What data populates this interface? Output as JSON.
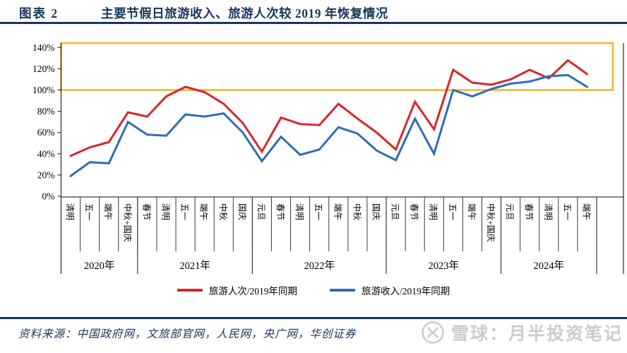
{
  "header": {
    "figure_label": "图表 2",
    "title": "主要节假日旅游收入、旅游人次较 2019 年恢复情况"
  },
  "chart_data": {
    "type": "line",
    "title": "主要节假日旅游收入、旅游人次较 2019 年恢复情况",
    "ylabel": "",
    "xlabel": "",
    "ylim": [
      0,
      145
    ],
    "yticks": [
      0,
      20,
      40,
      60,
      80,
      100,
      120,
      140
    ],
    "ytick_suffix": "%",
    "grid": false,
    "legend_position": "bottom",
    "highlight_box": {
      "from_percent": 100,
      "to_percent": 144,
      "color": "#F2B62C"
    },
    "categories": [
      {
        "year": "2020年",
        "holidays": [
          "清明",
          "五一",
          "端午",
          "中秋+国庆"
        ]
      },
      {
        "year": "2021年",
        "holidays": [
          "春节",
          "清明",
          "五一",
          "端午",
          "中秋",
          "国庆"
        ]
      },
      {
        "year": "2022年",
        "holidays": [
          "元旦",
          "春节",
          "清明",
          "五一",
          "端午",
          "中秋",
          "国庆"
        ]
      },
      {
        "year": "2023年",
        "holidays": [
          "元旦",
          "春节",
          "清明",
          "五一",
          "端午",
          "中秋+国庆"
        ]
      },
      {
        "year": "2024年",
        "holidays": [
          "元旦",
          "春节",
          "清明",
          "五一",
          "端午"
        ]
      }
    ],
    "series": [
      {
        "name": "旅游人次/2019年同期",
        "color": "#D7262C",
        "values": [
          38,
          46,
          51,
          79,
          75,
          94,
          103,
          98,
          87,
          69,
          42,
          74,
          68,
          67,
          87,
          73,
          60,
          44,
          89,
          63,
          119,
          107,
          105,
          110,
          119,
          111,
          128,
          115
        ]
      },
      {
        "name": "旅游收入/2019年同期",
        "color": "#2E6DB5",
        "values": [
          19,
          32,
          31,
          70,
          58,
          57,
          77,
          75,
          78,
          60,
          33,
          56,
          39,
          44,
          65,
          59,
          43,
          34,
          73,
          40,
          100,
          94,
          101,
          106,
          108,
          113,
          114,
          103
        ]
      }
    ]
  },
  "footer": {
    "source": "资料来源：中国政府网，文旅部官网，人民网，央广网，华创证券",
    "watermark": "雪球：月半投资笔记"
  },
  "colors": {
    "accent_navy": "#16365C",
    "axis": "#3a3a3a",
    "watermark_gray": "#cccccc"
  }
}
